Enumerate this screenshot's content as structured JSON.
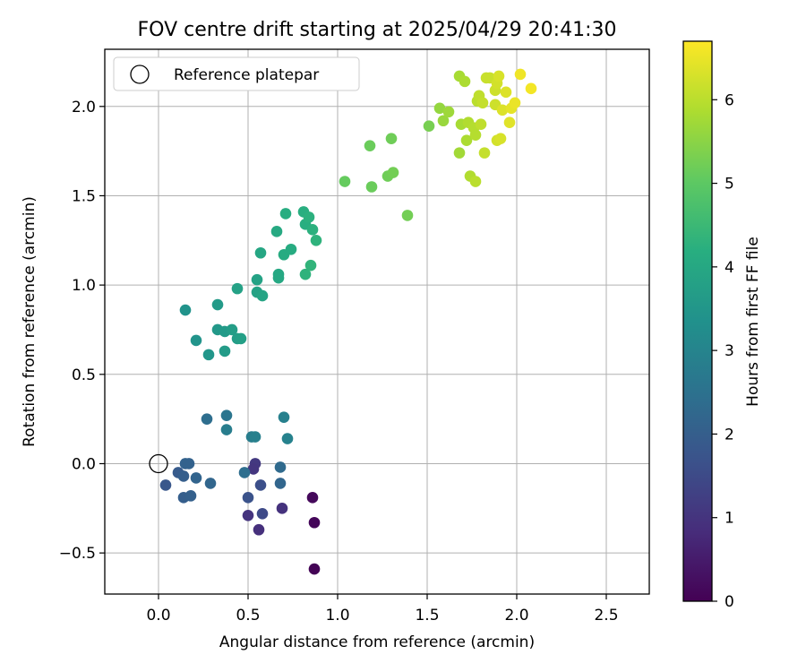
{
  "chart_data": {
    "type": "scatter",
    "title": "FOV centre drift starting at 2025/04/29 20:41:30",
    "xlabel": "Angular distance from reference (arcmin)",
    "ylabel": "Rotation from reference (arcmin)",
    "xlim": [
      -0.3,
      2.74
    ],
    "ylim": [
      -0.73,
      2.32
    ],
    "xticks": [
      "0.0",
      "0.5",
      "1.0",
      "1.5",
      "2.0",
      "2.5"
    ],
    "xtick_values": [
      0,
      0.5,
      1.0,
      1.5,
      2.0,
      2.5
    ],
    "yticks": [
      "−0.5",
      "0.0",
      "0.5",
      "1.0",
      "1.5",
      "2.0"
    ],
    "ytick_values": [
      -0.5,
      0,
      0.5,
      1.0,
      1.5,
      2.0
    ],
    "grid": true,
    "legend": {
      "position": "top-left",
      "label": "Reference platepar"
    },
    "reference_point": {
      "x": 0.0,
      "y": 0.0
    },
    "colorbar": {
      "label": "Hours from first FF file",
      "colormap": "viridis",
      "range": [
        0,
        6.7
      ],
      "ticks": [
        "0",
        "1",
        "2",
        "3",
        "4",
        "5",
        "6"
      ],
      "tick_values": [
        0,
        1,
        2,
        3,
        4,
        5,
        6
      ]
    },
    "series": [
      {
        "points": [
          {
            "x": 0.87,
            "y": -0.59,
            "h": 0.05
          },
          {
            "x": 0.87,
            "y": -0.33,
            "h": 0.1
          },
          {
            "x": 0.86,
            "y": -0.19,
            "h": 0.15
          },
          {
            "x": 0.56,
            "y": -0.37,
            "h": 0.9
          },
          {
            "x": 0.69,
            "y": -0.25,
            "h": 0.95
          },
          {
            "x": 0.5,
            "y": -0.29,
            "h": 1.0
          },
          {
            "x": 0.54,
            "y": 0.0,
            "h": 1.1
          },
          {
            "x": 0.53,
            "y": -0.03,
            "h": 1.05
          },
          {
            "x": 0.58,
            "y": -0.28,
            "h": 1.5
          },
          {
            "x": 0.57,
            "y": -0.12,
            "h": 1.6
          },
          {
            "x": 0.5,
            "y": -0.19,
            "h": 1.7
          },
          {
            "x": 0.04,
            "y": -0.12,
            "h": 1.8
          },
          {
            "x": 0.11,
            "y": -0.05,
            "h": 1.9
          },
          {
            "x": 0.14,
            "y": -0.07,
            "h": 2.0
          },
          {
            "x": 0.14,
            "y": -0.19,
            "h": 2.0
          },
          {
            "x": 0.18,
            "y": -0.18,
            "h": 2.05
          },
          {
            "x": 0.15,
            "y": 0.0,
            "h": 2.1
          },
          {
            "x": 0.17,
            "y": 0.0,
            "h": 2.1
          },
          {
            "x": 0.21,
            "y": -0.08,
            "h": 2.15
          },
          {
            "x": 0.29,
            "y": -0.11,
            "h": 2.2
          },
          {
            "x": 0.68,
            "y": -0.11,
            "h": 2.2
          },
          {
            "x": 0.68,
            "y": -0.02,
            "h": 2.3
          },
          {
            "x": 0.48,
            "y": -0.05,
            "h": 2.4
          },
          {
            "x": 0.27,
            "y": 0.25,
            "h": 2.4
          },
          {
            "x": 0.38,
            "y": 0.27,
            "h": 2.6
          },
          {
            "x": 0.38,
            "y": 0.19,
            "h": 2.8
          },
          {
            "x": 0.52,
            "y": 0.15,
            "h": 2.8
          },
          {
            "x": 0.54,
            "y": 0.15,
            "h": 2.9
          },
          {
            "x": 0.7,
            "y": 0.26,
            "h": 2.9
          },
          {
            "x": 0.72,
            "y": 0.14,
            "h": 2.95
          },
          {
            "x": 0.15,
            "y": 0.86,
            "h": 3.4
          },
          {
            "x": 0.21,
            "y": 0.69,
            "h": 3.45
          },
          {
            "x": 0.28,
            "y": 0.61,
            "h": 3.5
          },
          {
            "x": 0.33,
            "y": 0.75,
            "h": 3.55
          },
          {
            "x": 0.33,
            "y": 0.89,
            "h": 3.6
          },
          {
            "x": 0.37,
            "y": 0.74,
            "h": 3.6
          },
          {
            "x": 0.37,
            "y": 0.63,
            "h": 3.65
          },
          {
            "x": 0.41,
            "y": 0.75,
            "h": 3.7
          },
          {
            "x": 0.44,
            "y": 0.7,
            "h": 3.7
          },
          {
            "x": 0.46,
            "y": 0.7,
            "h": 3.75
          },
          {
            "x": 0.44,
            "y": 0.98,
            "h": 3.8
          },
          {
            "x": 0.55,
            "y": 1.03,
            "h": 3.85
          },
          {
            "x": 0.55,
            "y": 0.96,
            "h": 3.85
          },
          {
            "x": 0.58,
            "y": 0.94,
            "h": 3.9
          },
          {
            "x": 0.57,
            "y": 1.18,
            "h": 3.95
          },
          {
            "x": 0.67,
            "y": 1.06,
            "h": 4.0
          },
          {
            "x": 0.67,
            "y": 1.04,
            "h": 4.0
          },
          {
            "x": 0.66,
            "y": 1.3,
            "h": 4.05
          },
          {
            "x": 0.7,
            "y": 1.17,
            "h": 4.1
          },
          {
            "x": 0.74,
            "y": 1.2,
            "h": 4.1
          },
          {
            "x": 0.71,
            "y": 1.4,
            "h": 4.15
          },
          {
            "x": 0.81,
            "y": 1.41,
            "h": 4.2
          },
          {
            "x": 0.82,
            "y": 1.34,
            "h": 4.2
          },
          {
            "x": 0.84,
            "y": 1.38,
            "h": 4.25
          },
          {
            "x": 0.86,
            "y": 1.31,
            "h": 4.25
          },
          {
            "x": 0.88,
            "y": 1.25,
            "h": 4.3
          },
          {
            "x": 0.82,
            "y": 1.06,
            "h": 4.3
          },
          {
            "x": 0.85,
            "y": 1.11,
            "h": 4.35
          },
          {
            "x": 1.04,
            "y": 1.58,
            "h": 5.1
          },
          {
            "x": 1.18,
            "y": 1.78,
            "h": 5.15
          },
          {
            "x": 1.19,
            "y": 1.55,
            "h": 5.15
          },
          {
            "x": 1.28,
            "y": 1.61,
            "h": 5.2
          },
          {
            "x": 1.3,
            "y": 1.82,
            "h": 5.2
          },
          {
            "x": 1.31,
            "y": 1.63,
            "h": 5.25
          },
          {
            "x": 1.39,
            "y": 1.39,
            "h": 5.25
          },
          {
            "x": 1.51,
            "y": 1.89,
            "h": 5.3
          },
          {
            "x": 1.57,
            "y": 1.99,
            "h": 5.6
          },
          {
            "x": 1.59,
            "y": 1.92,
            "h": 5.65
          },
          {
            "x": 1.62,
            "y": 1.97,
            "h": 5.7
          },
          {
            "x": 1.68,
            "y": 1.74,
            "h": 5.75
          },
          {
            "x": 1.68,
            "y": 2.17,
            "h": 5.8
          },
          {
            "x": 1.69,
            "y": 1.9,
            "h": 5.8
          },
          {
            "x": 1.71,
            "y": 2.14,
            "h": 5.85
          },
          {
            "x": 1.72,
            "y": 1.81,
            "h": 5.85
          },
          {
            "x": 1.73,
            "y": 1.91,
            "h": 5.9
          },
          {
            "x": 1.74,
            "y": 1.61,
            "h": 5.9
          },
          {
            "x": 1.76,
            "y": 1.88,
            "h": 5.95
          },
          {
            "x": 1.77,
            "y": 1.84,
            "h": 5.95
          },
          {
            "x": 1.77,
            "y": 1.58,
            "h": 6.0
          },
          {
            "x": 1.78,
            "y": 2.03,
            "h": 6.0
          },
          {
            "x": 1.79,
            "y": 2.06,
            "h": 6.05
          },
          {
            "x": 1.8,
            "y": 1.9,
            "h": 6.05
          },
          {
            "x": 1.81,
            "y": 2.02,
            "h": 6.1
          },
          {
            "x": 1.82,
            "y": 1.74,
            "h": 6.1
          },
          {
            "x": 1.83,
            "y": 2.16,
            "h": 6.15
          },
          {
            "x": 1.85,
            "y": 2.16,
            "h": 6.15
          },
          {
            "x": 1.88,
            "y": 2.01,
            "h": 6.2
          },
          {
            "x": 1.88,
            "y": 2.09,
            "h": 6.2
          },
          {
            "x": 1.89,
            "y": 1.81,
            "h": 6.25
          },
          {
            "x": 1.89,
            "y": 2.13,
            "h": 6.25
          },
          {
            "x": 1.9,
            "y": 2.17,
            "h": 6.3
          },
          {
            "x": 1.91,
            "y": 1.82,
            "h": 6.3
          },
          {
            "x": 1.92,
            "y": 1.98,
            "h": 6.35
          },
          {
            "x": 1.94,
            "y": 2.08,
            "h": 6.35
          },
          {
            "x": 1.96,
            "y": 1.91,
            "h": 6.4
          },
          {
            "x": 1.97,
            "y": 1.99,
            "h": 6.45
          },
          {
            "x": 1.99,
            "y": 2.02,
            "h": 6.5
          },
          {
            "x": 2.02,
            "y": 2.18,
            "h": 6.55
          },
          {
            "x": 2.08,
            "y": 2.1,
            "h": 6.6
          }
        ]
      }
    ]
  }
}
